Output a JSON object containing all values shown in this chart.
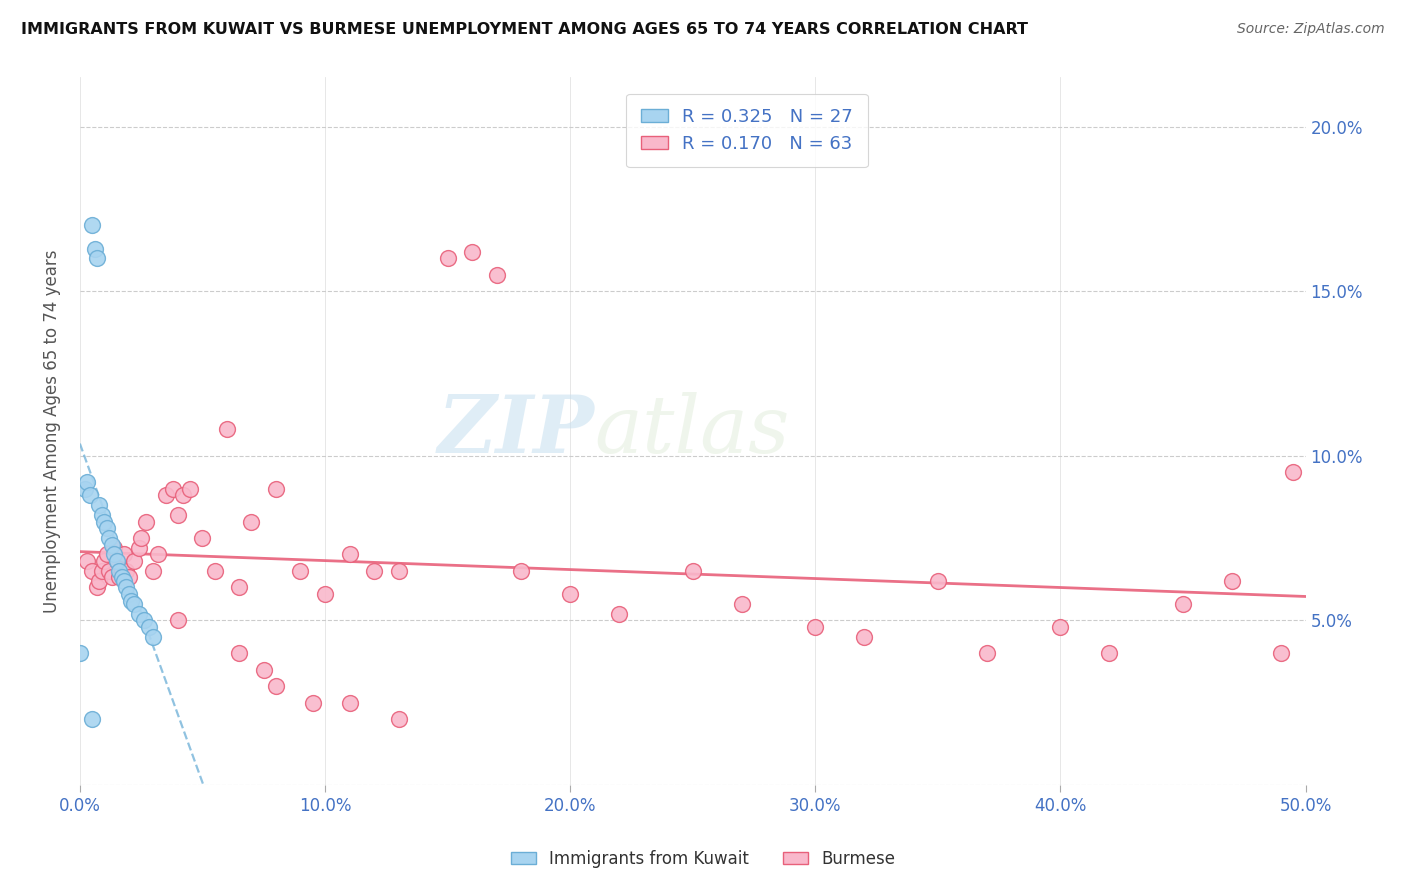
{
  "title": "IMMIGRANTS FROM KUWAIT VS BURMESE UNEMPLOYMENT AMONG AGES 65 TO 74 YEARS CORRELATION CHART",
  "source": "Source: ZipAtlas.com",
  "ylabel": "Unemployment Among Ages 65 to 74 years",
  "xlim": [
    0.0,
    0.5
  ],
  "ylim": [
    0.0,
    0.215
  ],
  "xticks": [
    0.0,
    0.1,
    0.2,
    0.3,
    0.4,
    0.5
  ],
  "yticks": [
    0.0,
    0.05,
    0.1,
    0.15,
    0.2
  ],
  "xticklabels": [
    "0.0%",
    "10.0%",
    "20.0%",
    "30.0%",
    "40.0%",
    "50.0%"
  ],
  "right_yticklabels": [
    "",
    "5.0%",
    "10.0%",
    "15.0%",
    "20.0%"
  ],
  "kuwait_R": 0.325,
  "kuwait_N": 27,
  "burmese_R": 0.17,
  "burmese_N": 63,
  "kuwait_color": "#a8d4f0",
  "burmese_color": "#f9b8cb",
  "kuwait_line_color": "#6baed6",
  "burmese_line_color": "#e8607a",
  "kuwait_x": [
    0.0,
    0.002,
    0.003,
    0.004,
    0.005,
    0.006,
    0.007,
    0.008,
    0.009,
    0.01,
    0.011,
    0.012,
    0.013,
    0.014,
    0.015,
    0.016,
    0.017,
    0.018,
    0.019,
    0.02,
    0.021,
    0.022,
    0.024,
    0.026,
    0.028,
    0.03,
    0.005
  ],
  "kuwait_y": [
    0.04,
    0.09,
    0.092,
    0.088,
    0.17,
    0.163,
    0.16,
    0.085,
    0.082,
    0.08,
    0.078,
    0.075,
    0.073,
    0.07,
    0.068,
    0.065,
    0.063,
    0.062,
    0.06,
    0.058,
    0.056,
    0.055,
    0.052,
    0.05,
    0.048,
    0.045,
    0.02
  ],
  "burmese_x": [
    0.003,
    0.005,
    0.007,
    0.008,
    0.009,
    0.01,
    0.011,
    0.012,
    0.013,
    0.014,
    0.015,
    0.016,
    0.017,
    0.018,
    0.019,
    0.02,
    0.022,
    0.024,
    0.025,
    0.027,
    0.03,
    0.032,
    0.035,
    0.038,
    0.04,
    0.042,
    0.045,
    0.05,
    0.055,
    0.06,
    0.065,
    0.07,
    0.08,
    0.09,
    0.1,
    0.11,
    0.12,
    0.13,
    0.15,
    0.16,
    0.17,
    0.18,
    0.2,
    0.22,
    0.25,
    0.27,
    0.3,
    0.32,
    0.35,
    0.37,
    0.4,
    0.42,
    0.45,
    0.47,
    0.49,
    0.495,
    0.04,
    0.065,
    0.075,
    0.08,
    0.095,
    0.11,
    0.13
  ],
  "burmese_y": [
    0.068,
    0.065,
    0.06,
    0.062,
    0.065,
    0.068,
    0.07,
    0.065,
    0.063,
    0.072,
    0.068,
    0.063,
    0.065,
    0.07,
    0.065,
    0.063,
    0.068,
    0.072,
    0.075,
    0.08,
    0.065,
    0.07,
    0.088,
    0.09,
    0.082,
    0.088,
    0.09,
    0.075,
    0.065,
    0.108,
    0.06,
    0.08,
    0.09,
    0.065,
    0.058,
    0.07,
    0.065,
    0.065,
    0.16,
    0.162,
    0.155,
    0.065,
    0.058,
    0.052,
    0.065,
    0.055,
    0.048,
    0.045,
    0.062,
    0.04,
    0.048,
    0.04,
    0.055,
    0.062,
    0.04,
    0.095,
    0.05,
    0.04,
    0.035,
    0.03,
    0.025,
    0.025,
    0.02
  ],
  "watermark_zip": "ZIP",
  "watermark_atlas": "atlas",
  "background_color": "#ffffff"
}
